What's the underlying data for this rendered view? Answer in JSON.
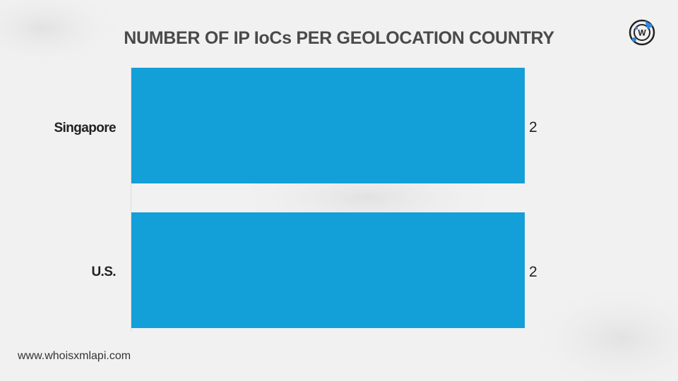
{
  "title": "NUMBER OF IP IoCs PER GEOLOCATION COUNTRY",
  "footer": "www.whoisxmlapi.com",
  "logo_icon": "whoisxmlapi-logo-icon",
  "colors": {
    "bar": "#139fd8",
    "title": "#4a4a4a",
    "logo_accent": "#2b8ae6"
  },
  "chart_data": {
    "type": "bar",
    "orientation": "horizontal",
    "title": "NUMBER OF IP IoCs PER GEOLOCATION COUNTRY",
    "categories": [
      "Singapore",
      "U.S."
    ],
    "values": [
      2,
      2
    ],
    "data_labels": [
      "2",
      "2"
    ],
    "xlim": [
      0,
      2
    ],
    "grid": false,
    "legend": "none"
  }
}
